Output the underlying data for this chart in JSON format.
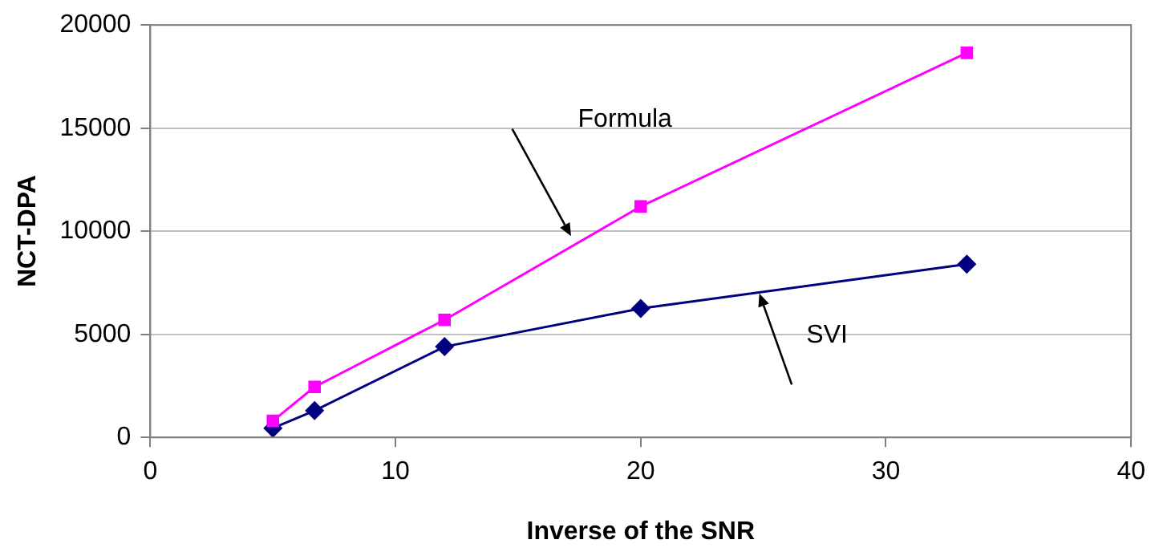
{
  "chart_data": {
    "type": "line",
    "xlabel": "Inverse of the SNR",
    "ylabel": "NCT-DPA",
    "x": [
      5,
      6.7,
      12,
      20,
      33.3
    ],
    "series": [
      {
        "color": "#ff00ff",
        "marker": "square",
        "values": [
          800,
          2450,
          5700,
          11200,
          18650
        ]
      },
      {
        "color": "#000080",
        "marker": "diamond",
        "values": [
          450,
          1300,
          4400,
          6250,
          8400
        ]
      }
    ],
    "xlim": [
      0,
      40
    ],
    "xticks": [
      0,
      10,
      20,
      30,
      40
    ],
    "ylim": [
      0,
      20000
    ],
    "yticks": [
      0,
      5000,
      10000,
      15000,
      20000
    ],
    "grid": "y",
    "legend": false,
    "annotations": [
      "Formula",
      "SVI"
    ]
  }
}
